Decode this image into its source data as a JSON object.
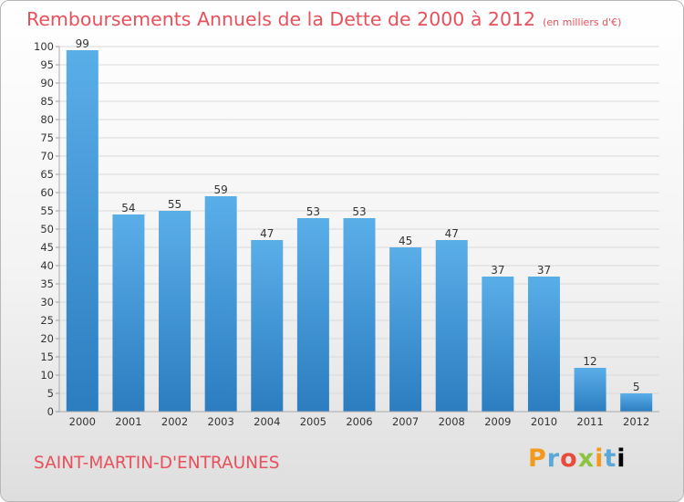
{
  "header": {
    "title": "Remboursements Annuels de la Dette de 2000 à 2012",
    "unit": "(en milliers d'€)"
  },
  "footer": {
    "commune": "SAINT-MARTIN-D'ENTRAUNES",
    "logo": "Proxiti"
  },
  "colors": {
    "bar_top": "#5aaee8",
    "bar_bottom": "#2b7dc0",
    "title": "#e8505b"
  },
  "chart_data": {
    "type": "bar",
    "title": "Remboursements Annuels de la Dette de 2000 à 2012",
    "categories": [
      "2000",
      "2001",
      "2002",
      "2003",
      "2004",
      "2005",
      "2006",
      "2007",
      "2008",
      "2009",
      "2010",
      "2011",
      "2012"
    ],
    "values": [
      99,
      54,
      55,
      59,
      47,
      53,
      53,
      45,
      47,
      37,
      37,
      12,
      5
    ],
    "ylim": [
      0,
      100
    ],
    "yticks": [
      0,
      5,
      10,
      15,
      20,
      25,
      30,
      35,
      40,
      45,
      50,
      55,
      60,
      65,
      70,
      75,
      80,
      85,
      90,
      95,
      100
    ],
    "grid": true
  }
}
